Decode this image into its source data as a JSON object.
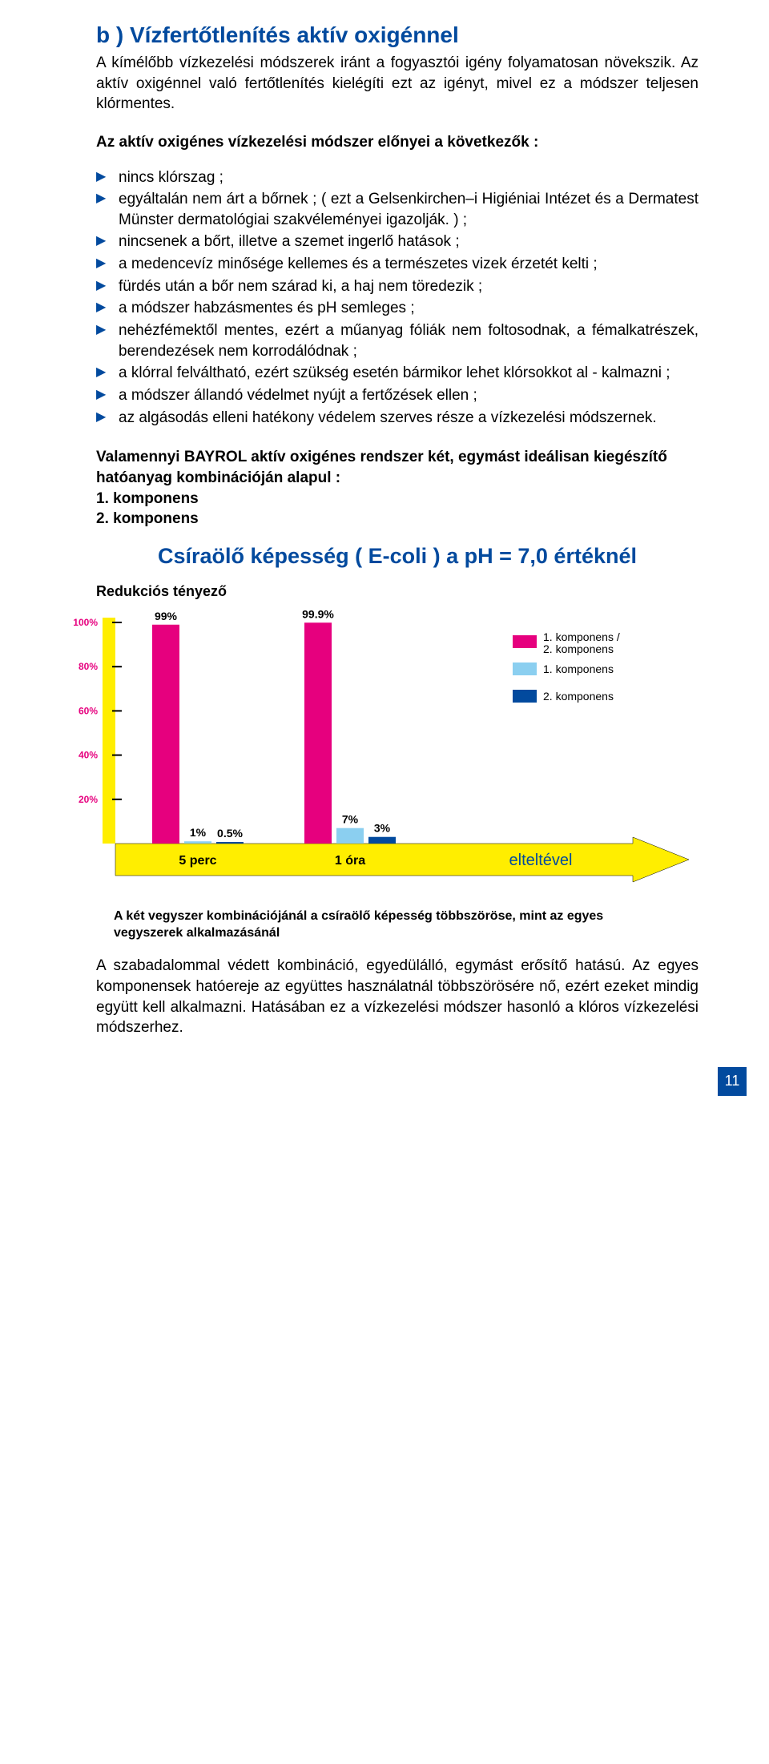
{
  "title": "b ) Vízfertőtlenítés aktív oxigénnel",
  "intro": "A kímélőbb vízkezelési módszerek iránt a fogyasztói igény folyamatosan növekszik. Az aktív oxigénnel való fertőtlenítés kielégíti ezt az igényt, mivel ez a módszer teljesen klórmentes.",
  "advantages_heading": "Az aktív oxigénes vízkezelési módszer előnyei a következők :",
  "bullets": [
    "nincs klórszag ;",
    "egyáltalán nem árt a bőrnek ; ( ezt a Gelsenkirchen–i Higiéniai Intézet és a Dermatest Münster dermatológiai szakvéleményei igazolják. ) ;",
    "nincsenek a bőrt, illetve a szemet ingerlő hatások ;",
    "a medencevíz minősége kellemes és a természetes vizek érzetét kelti ;",
    "fürdés után a bőr nem szárad ki, a haj nem töredezik ;",
    "a módszer habzásmentes és pH semleges ;",
    "nehézfémektől mentes, ezért a műanyag fóliák nem foltosodnak, a fémalkatrészek, berendezések nem korrodálódnak ;",
    "a klórral felváltható, ezért szükség esetén bármikor lehet klórsokkot al - kalmazni ;",
    "a módszer állandó védelmet nyújt a fertőzések ellen ;",
    "az algásodás elleni hatékony védelem szerves része a vízkezelési módszernek."
  ],
  "combo_heading_1": "Valamennyi BAYROL aktív oxigénes rendszer két, egymást ideálisan kiegészítő hatóanyag kombinációján alapul :",
  "combo_heading_2": "1. komponens",
  "combo_heading_3": "2. komponens",
  "chart": {
    "title": "Csíraölő képesség ( E-coli ) a pH = 7,0 értéknél",
    "y_label": "Redukciós tényező",
    "y_ticks": [
      100,
      80,
      60,
      40,
      20
    ],
    "groups": [
      {
        "name": "5 perc",
        "bars": [
          {
            "series": 0,
            "value": 99,
            "label": "99%"
          },
          {
            "series": 1,
            "value": 1,
            "label": "1%"
          },
          {
            "series": 2,
            "value": 0.5,
            "label": "0.5%"
          }
        ]
      },
      {
        "name": "1 óra",
        "bars": [
          {
            "series": 0,
            "value": 99.9,
            "label": "99.9%"
          },
          {
            "series": 1,
            "value": 7,
            "label": "7%"
          },
          {
            "series": 2,
            "value": 3,
            "label": "3%"
          }
        ]
      }
    ],
    "legend": [
      {
        "label": "1. komponens / 2. komponens",
        "color": "#e6007e"
      },
      {
        "label": "1. komponens",
        "color": "#8bcff0"
      },
      {
        "label": "2. komponens",
        "color": "#024a9e"
      }
    ],
    "series_colors": [
      "#e6007e",
      "#8bcff0",
      "#024a9e"
    ],
    "arrow_color": "#ffee00",
    "arrow_text": "elteltével",
    "y_axis_color": "#ffee00",
    "caption": "A két vegyszer kombinációjánál a csíraölő képesség többszöröse, mint az egyes vegyszerek alkalmazásánál"
  },
  "footer": "A szabadalommal védett kombináció, egyedülálló, egymást erősítő hatású. Az egyes komponensek hatóereje az együttes használatnál többszörösére nő, ezért ezeket mindig együtt kell alkalmazni. Hatásában ez a vízkezelési módszer hasonló a klóros vízkezelési módszerhez.",
  "page_number": "11"
}
